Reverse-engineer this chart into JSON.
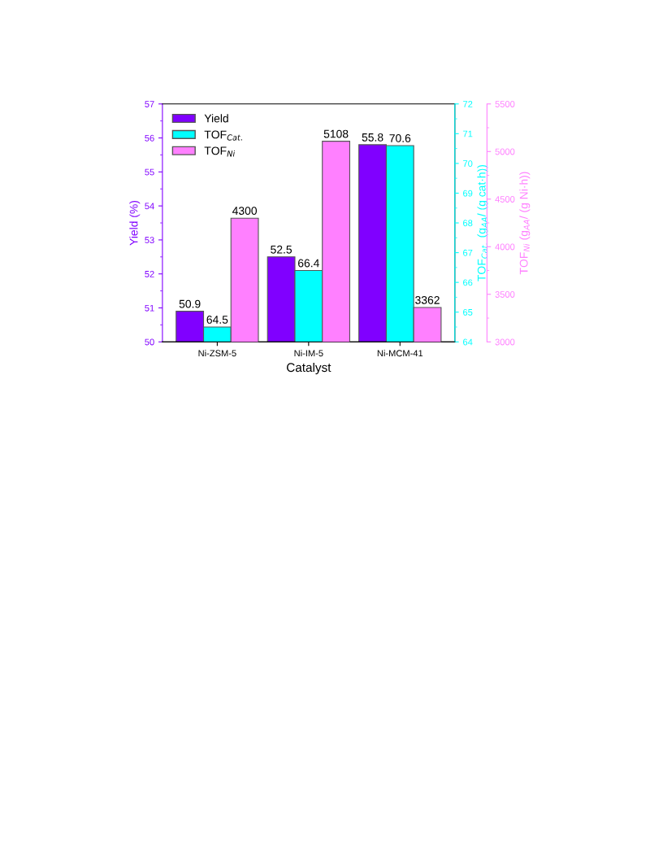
{
  "chart_data": {
    "type": "bar",
    "xlabel": "Catalyst",
    "ylabel": "Yield (%)",
    "y2label": "TOF$_{Cat.}$ (g$_{AA}$/ (g cat·h))",
    "y3label": "TOF$_{Ni}$ (g$_{AA}$/ (g Ni·h))",
    "categories": [
      "Ni-ZSM-5",
      "Ni-IM-5",
      "Ni-MCM-41"
    ],
    "series": [
      {
        "name": "Yield",
        "color": "#8000ff",
        "axis": "y",
        "values": [
          50.9,
          52.5,
          55.8
        ]
      },
      {
        "name": "TOF$_{Cat.}$",
        "color": "#00ffff",
        "axis": "y2",
        "values": [
          64.5,
          66.4,
          70.6
        ]
      },
      {
        "name": "TOF$_{Ni}$",
        "color": "#ff80ff",
        "axis": "y3",
        "values": [
          4300,
          5108,
          3362
        ]
      }
    ],
    "ylim": [
      50,
      57
    ],
    "yticks": [
      50,
      51,
      52,
      53,
      54,
      55,
      56,
      57
    ],
    "y2lim": [
      64,
      72
    ],
    "y2ticks": [
      64,
      65,
      66,
      67,
      68,
      69,
      70,
      71,
      72
    ],
    "y3lim": [
      3000,
      5500
    ],
    "y3ticks": [
      3000,
      3500,
      4000,
      4500,
      5000,
      5500
    ],
    "data_labels": true,
    "legend": "top left",
    "grid": false
  }
}
